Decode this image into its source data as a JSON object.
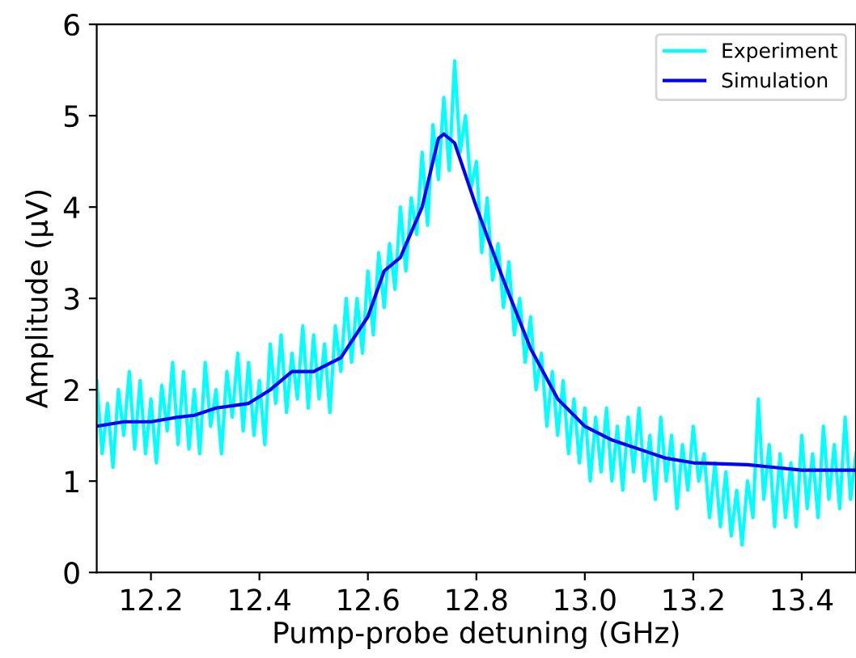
{
  "chart_data": {
    "type": "line",
    "xlabel": "Pump-probe detuning (GHz)",
    "ylabel": "Amplitude (μV)",
    "xlim": [
      12.1,
      13.5
    ],
    "xticks": [
      12.2,
      12.4,
      12.6,
      12.8,
      {
        "value": 13.0,
        "label": "13.0"
      },
      13.2,
      13.4
    ],
    "ylim": [
      0,
      6
    ],
    "yticks": [
      0,
      1,
      2,
      3,
      4,
      5,
      6
    ],
    "grid": false,
    "legend": "top right",
    "series": [
      {
        "name": "Experiment",
        "color": "#00ffff",
        "x": [
          12.1,
          12.11,
          12.12,
          12.13,
          12.14,
          12.15,
          12.16,
          12.17,
          12.18,
          12.19,
          12.2,
          12.21,
          12.22,
          12.23,
          12.24,
          12.25,
          12.26,
          12.27,
          12.28,
          12.29,
          12.3,
          12.31,
          12.32,
          12.33,
          12.34,
          12.35,
          12.36,
          12.37,
          12.38,
          12.39,
          12.4,
          12.41,
          12.42,
          12.43,
          12.44,
          12.45,
          12.46,
          12.47,
          12.48,
          12.49,
          12.5,
          12.51,
          12.52,
          12.53,
          12.54,
          12.55,
          12.56,
          12.57,
          12.58,
          12.59,
          12.6,
          12.61,
          12.62,
          12.63,
          12.64,
          12.65,
          12.66,
          12.67,
          12.68,
          12.69,
          12.7,
          12.71,
          12.72,
          12.73,
          12.74,
          12.75,
          12.76,
          12.77,
          12.78,
          12.79,
          12.8,
          12.81,
          12.82,
          12.83,
          12.84,
          12.85,
          12.86,
          12.87,
          12.88,
          12.89,
          12.9,
          12.91,
          12.92,
          12.93,
          12.94,
          12.95,
          12.96,
          12.97,
          12.98,
          12.99,
          13.0,
          13.01,
          13.02,
          13.03,
          13.04,
          13.05,
          13.06,
          13.07,
          13.08,
          13.09,
          13.1,
          13.11,
          13.12,
          13.13,
          13.14,
          13.15,
          13.16,
          13.17,
          13.18,
          13.19,
          13.2,
          13.21,
          13.22,
          13.23,
          13.24,
          13.25,
          13.26,
          13.27,
          13.28,
          13.29,
          13.3,
          13.31,
          13.32,
          13.33,
          13.34,
          13.35,
          13.36,
          13.37,
          13.38,
          13.39,
          13.4,
          13.41,
          13.42,
          13.43,
          13.44,
          13.45,
          13.46,
          13.47,
          13.48,
          13.49,
          13.5
        ],
        "values": [
          2.1,
          1.3,
          1.85,
          1.15,
          2.0,
          1.5,
          2.2,
          1.35,
          2.1,
          1.3,
          1.9,
          1.2,
          2.05,
          1.55,
          2.3,
          1.4,
          2.2,
          1.35,
          2.0,
          1.3,
          2.3,
          1.6,
          2.0,
          1.3,
          2.2,
          1.7,
          2.4,
          1.55,
          2.3,
          1.5,
          2.1,
          1.4,
          2.5,
          1.85,
          2.6,
          1.75,
          2.4,
          1.9,
          2.7,
          1.8,
          2.6,
          1.9,
          2.5,
          1.75,
          2.7,
          2.2,
          3.0,
          2.3,
          3.0,
          2.4,
          3.3,
          2.6,
          3.5,
          2.9,
          3.6,
          3.1,
          4.0,
          3.3,
          4.1,
          3.7,
          4.6,
          3.8,
          4.9,
          4.3,
          5.2,
          4.4,
          5.6,
          4.6,
          5.0,
          4.2,
          4.5,
          3.5,
          4.1,
          3.2,
          3.6,
          2.9,
          3.4,
          2.6,
          3.0,
          2.3,
          2.8,
          2.0,
          2.4,
          1.6,
          2.2,
          1.5,
          2.1,
          1.3,
          1.9,
          1.2,
          1.8,
          1.0,
          1.7,
          1.1,
          1.8,
          1.0,
          1.6,
          0.9,
          1.7,
          1.1,
          1.8,
          1.0,
          1.5,
          0.8,
          1.7,
          1.0,
          1.5,
          0.7,
          1.4,
          0.9,
          1.6,
          1.0,
          1.3,
          0.6,
          1.2,
          0.5,
          1.1,
          0.4,
          0.9,
          0.3,
          1.0,
          0.6,
          1.9,
          0.8,
          1.4,
          0.5,
          1.3,
          0.6,
          1.2,
          0.5,
          1.5,
          0.7,
          1.3,
          0.6,
          1.6,
          0.8,
          1.4,
          0.7,
          1.7,
          0.8,
          1.3
        ]
      },
      {
        "name": "Simulation",
        "color": "#0000ff",
        "x": [
          12.1,
          12.15,
          12.2,
          12.25,
          12.28,
          12.32,
          12.38,
          12.42,
          12.46,
          12.5,
          12.55,
          12.6,
          12.63,
          12.66,
          12.7,
          12.73,
          12.74,
          12.76,
          12.8,
          12.85,
          12.9,
          12.95,
          13.0,
          13.05,
          13.1,
          13.15,
          13.2,
          13.3,
          13.35,
          13.4,
          13.5
        ],
        "values": [
          1.6,
          1.65,
          1.65,
          1.7,
          1.72,
          1.8,
          1.85,
          2.0,
          2.2,
          2.2,
          2.35,
          2.8,
          3.3,
          3.45,
          4.0,
          4.75,
          4.8,
          4.7,
          4.0,
          3.2,
          2.45,
          1.9,
          1.6,
          1.45,
          1.35,
          1.25,
          1.2,
          1.18,
          1.15,
          1.12,
          1.12
        ]
      }
    ]
  }
}
